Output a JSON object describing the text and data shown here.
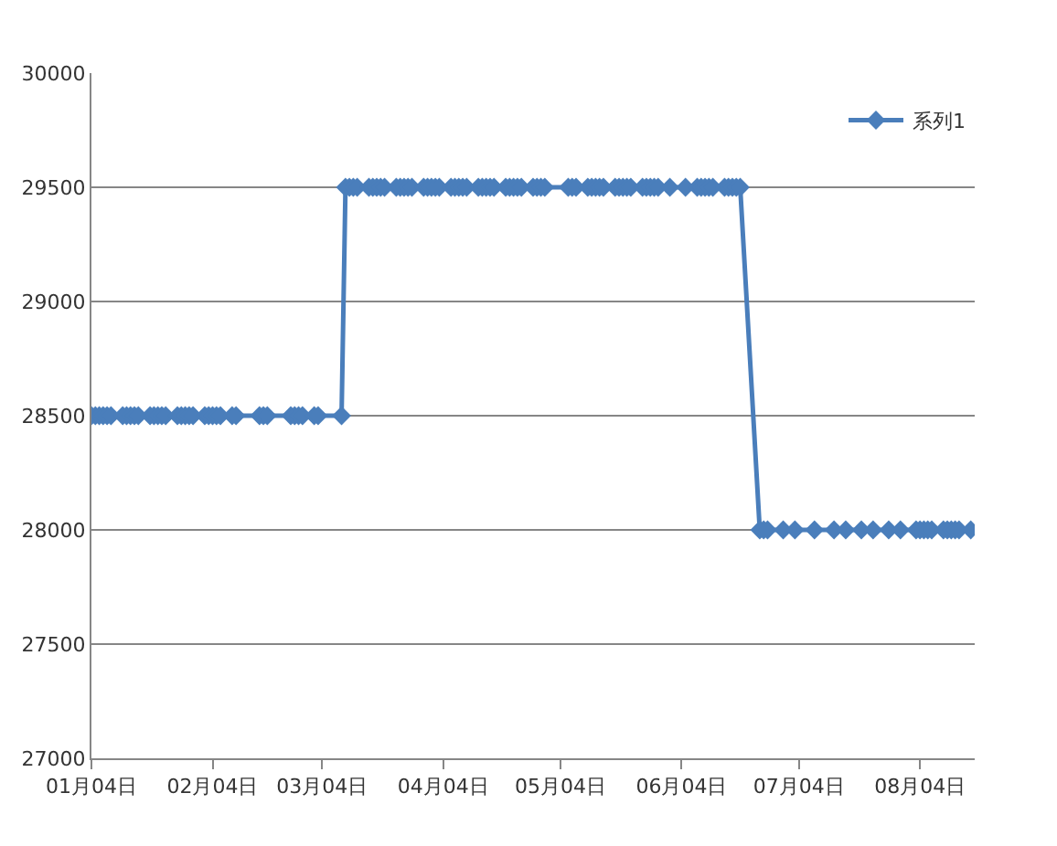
{
  "chart_data": {
    "type": "line",
    "x": [
      "--01-04",
      "--01-05",
      "--01-06",
      "--01-07",
      "--01-08",
      "--01-09",
      "--01-12",
      "--01-13",
      "--01-14",
      "--01-15",
      "--01-16",
      "--01-19",
      "--01-20",
      "--01-21",
      "--01-22",
      "--01-23",
      "--01-26",
      "--01-27",
      "--01-28",
      "--01-29",
      "--01-30",
      "--02-02",
      "--02-03",
      "--02-04",
      "--02-05",
      "--02-06",
      "--02-09",
      "--02-10",
      "--02-16",
      "--02-17",
      "--02-18",
      "--02-24",
      "--02-25",
      "--02-26",
      "--02-27",
      "--03-02",
      "--03-03",
      "--03-09",
      "--03-10",
      "--03-11",
      "--03-12",
      "--03-13",
      "--03-16",
      "--03-17",
      "--03-18",
      "--03-19",
      "--03-20",
      "--03-23",
      "--03-24",
      "--03-25",
      "--03-26",
      "--03-27",
      "--03-30",
      "--03-31",
      "--04-01",
      "--04-02",
      "--04-03",
      "--04-06",
      "--04-07",
      "--04-08",
      "--04-09",
      "--04-10",
      "--04-13",
      "--04-14",
      "--04-15",
      "--04-16",
      "--04-17",
      "--04-20",
      "--04-21",
      "--04-22",
      "--04-23",
      "--04-24",
      "--04-27",
      "--04-28",
      "--04-29",
      "--04-30",
      "--05-06",
      "--05-07",
      "--05-08",
      "--05-11",
      "--05-12",
      "--05-13",
      "--05-14",
      "--05-15",
      "--05-18",
      "--05-19",
      "--05-20",
      "--05-21",
      "--05-22",
      "--05-25",
      "--05-26",
      "--05-27",
      "--05-28",
      "--05-29",
      "--06-01",
      "--06-05",
      "--06-08",
      "--06-09",
      "--06-10",
      "--06-11",
      "--06-12",
      "--06-15",
      "--06-16",
      "--06-17",
      "--06-18",
      "--06-19",
      "--06-24",
      "--06-25",
      "--06-26",
      "--06-30",
      "--07-03",
      "--07-08",
      "--07-13",
      "--07-16",
      "--07-20",
      "--07-23",
      "--07-27",
      "--07-30",
      "--08-03",
      "--08-04",
      "--08-05",
      "--08-06",
      "--08-07",
      "--08-10",
      "--08-11",
      "--08-12",
      "--08-13",
      "--08-14",
      "--08-17"
    ],
    "series": [
      {
        "name": "系列1",
        "color": "#4a7ebb",
        "values": [
          28500,
          28500,
          28500,
          28500,
          28500,
          28500,
          28500,
          28500,
          28500,
          28500,
          28500,
          28500,
          28500,
          28500,
          28500,
          28500,
          28500,
          28500,
          28500,
          28500,
          28500,
          28500,
          28500,
          28500,
          28500,
          28500,
          28500,
          28500,
          28500,
          28500,
          28500,
          28500,
          28500,
          28500,
          28500,
          28500,
          28500,
          28500,
          29500,
          29500,
          29500,
          29500,
          29500,
          29500,
          29500,
          29500,
          29500,
          29500,
          29500,
          29500,
          29500,
          29500,
          29500,
          29500,
          29500,
          29500,
          29500,
          29500,
          29500,
          29500,
          29500,
          29500,
          29500,
          29500,
          29500,
          29500,
          29500,
          29500,
          29500,
          29500,
          29500,
          29500,
          29500,
          29500,
          29500,
          29500,
          29500,
          29500,
          29500,
          29500,
          29500,
          29500,
          29500,
          29500,
          29500,
          29500,
          29500,
          29500,
          29500,
          29500,
          29500,
          29500,
          29500,
          29500,
          29500,
          29500,
          29500,
          29500,
          29500,
          29500,
          29500,
          29500,
          29500,
          29500,
          29500,
          29500,
          28000,
          28000,
          28000,
          28000,
          28000,
          28000,
          28000,
          28000,
          28000,
          28000,
          28000,
          28000,
          28000,
          28000,
          28000,
          28000,
          28000,
          28000,
          28000,
          28000,
          28000,
          28000,
          28000
        ]
      }
    ],
    "xlim": [
      "--01-04",
      "--08-18"
    ],
    "xticks": [
      {
        "value": "--01-04",
        "label": "01月04日"
      },
      {
        "value": "--02-04",
        "label": "02月04日"
      },
      {
        "value": "--03-04",
        "label": "03月04日"
      },
      {
        "value": "--04-04",
        "label": "04月04日"
      },
      {
        "value": "--05-04",
        "label": "05月04日"
      },
      {
        "value": "--06-04",
        "label": "06月04日"
      },
      {
        "value": "--07-04",
        "label": "07月04日"
      },
      {
        "value": "--08-04",
        "label": "08月04日"
      }
    ],
    "ylim": [
      27000,
      30000
    ],
    "yticks": [
      27000,
      27500,
      28000,
      28500,
      29000,
      29500,
      30000
    ],
    "grid": "y",
    "legend": "top right",
    "marker": "diamond",
    "line_style": "solid"
  }
}
